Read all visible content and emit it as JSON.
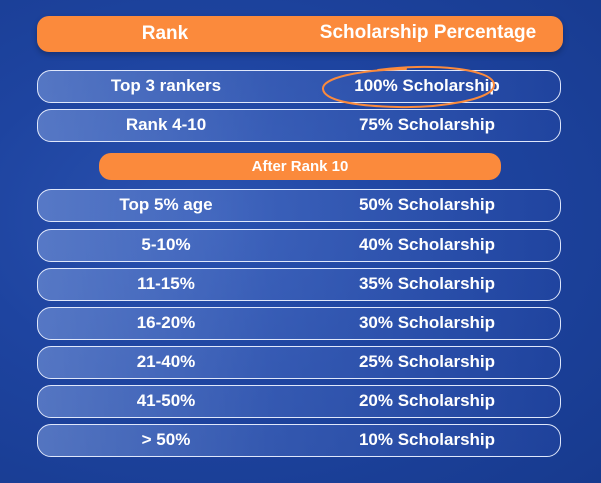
{
  "header": {
    "rank_label": "Rank",
    "scholarship_label": "Scholarship Percentage"
  },
  "top_rows": [
    {
      "rank": "Top 3 rankers",
      "scholarship": "100% Scholarship"
    },
    {
      "rank": "Rank 4-10",
      "scholarship": "75% Scholarship"
    }
  ],
  "divider_label": "After Rank 10",
  "bottom_rows": [
    {
      "rank": "Top 5% age",
      "scholarship": "50% Scholarship"
    },
    {
      "rank": "5-10%",
      "scholarship": "40% Scholarship"
    },
    {
      "rank": "11-15%",
      "scholarship": "35% Scholarship"
    },
    {
      "rank": "16-20%",
      "scholarship": "30% Scholarship"
    },
    {
      "rank": "21-40%",
      "scholarship": "25% Scholarship"
    },
    {
      "rank": "41-50%",
      "scholarship": "20% Scholarship"
    },
    {
      "rank": "> 50%",
      "scholarship": "10% Scholarship"
    }
  ],
  "colors": {
    "accent": "#fb8a3c",
    "background": "#1e44a0",
    "row_border": "#dfe7fb"
  }
}
